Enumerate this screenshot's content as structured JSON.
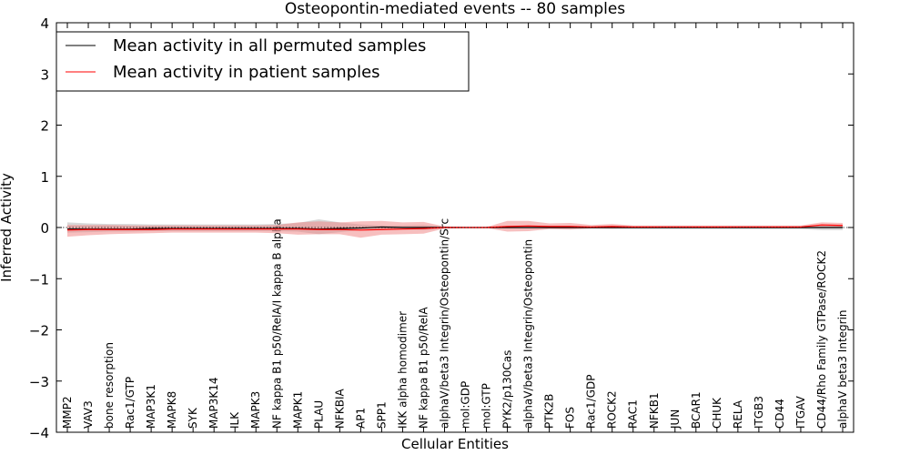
{
  "chart_data": {
    "type": "line",
    "title": "Osteopontin-mediated events -- 80 samples",
    "xlabel": "Cellular Entities",
    "ylabel": "Inferred Activity",
    "ylim": [
      -4,
      4
    ],
    "yticks": [
      4,
      3,
      2,
      1,
      0,
      -1,
      -2,
      -3,
      -4
    ],
    "ytick_labels": [
      "4",
      "3",
      "2",
      "1",
      "0",
      "−1",
      "−2",
      "−3",
      "−4"
    ],
    "legend_position": "top-left",
    "categories": [
      "MMP2",
      "VAV3",
      "bone resorption",
      "Rac1/GTP",
      "MAP3K1",
      "MAPK8",
      "SYK",
      "MAP3K14",
      "ILK",
      "MAPK3",
      "NF kappa B1 p50/RelA/I kappa B alpha",
      "MAPK1",
      "PLAU",
      "NFKBIA",
      "AP1",
      "SPP1",
      "IKK alpha homodimer",
      "NF kappa B1 p50/RelA",
      "alphaV/beta3 Integrin/Osteopontin/Src",
      "mol:GDP",
      "mol:GTP",
      "PYK2/p130Cas",
      "alphaV/beta3 Integrin/Osteopontin",
      "PTK2B",
      "FOS",
      "Rac1/GDP",
      "ROCK2",
      "RAC1",
      "NFKB1",
      "JUN",
      "BCAR1",
      "CHUK",
      "RELA",
      "ITGB3",
      "CD44",
      "ITGAV",
      "CD44/Rho Family GTPase/ROCK2",
      "alphaV beta3 Integrin"
    ],
    "series": [
      {
        "name": "Mean activity in all permuted samples",
        "color": "#000000",
        "band_color": "#b0b0b0",
        "values": [
          -0.03,
          -0.03,
          -0.03,
          -0.03,
          -0.02,
          -0.02,
          -0.02,
          -0.02,
          -0.02,
          -0.02,
          -0.02,
          -0.02,
          -0.03,
          -0.02,
          -0.01,
          0.01,
          0.0,
          0.0,
          0.0,
          0.0,
          0.0,
          0.0,
          0.0,
          0.0,
          0.0,
          0.0,
          0.0,
          0.0,
          0.0,
          0.0,
          0.0,
          0.0,
          0.0,
          0.0,
          0.0,
          0.0,
          0.0,
          0.0
        ],
        "lower": [
          -0.1,
          -0.09,
          -0.08,
          -0.08,
          -0.07,
          -0.07,
          -0.07,
          -0.07,
          -0.07,
          -0.07,
          -0.07,
          -0.08,
          -0.13,
          -0.09,
          -0.05,
          -0.04,
          -0.04,
          -0.05,
          -0.02,
          -0.01,
          -0.01,
          -0.02,
          -0.02,
          -0.02,
          -0.02,
          -0.02,
          -0.03,
          -0.03,
          -0.03,
          -0.03,
          -0.03,
          -0.03,
          -0.03,
          -0.03,
          -0.03,
          -0.03,
          -0.05,
          -0.05
        ],
        "upper": [
          0.1,
          0.08,
          0.07,
          0.07,
          0.06,
          0.06,
          0.06,
          0.06,
          0.06,
          0.06,
          0.07,
          0.09,
          0.16,
          0.1,
          0.06,
          0.04,
          0.04,
          0.05,
          0.02,
          0.01,
          0.01,
          0.02,
          0.02,
          0.02,
          0.02,
          0.02,
          0.03,
          0.03,
          0.03,
          0.03,
          0.03,
          0.03,
          0.03,
          0.03,
          0.03,
          0.03,
          0.05,
          0.05
        ]
      },
      {
        "name": "Mean activity in patient samples",
        "color": "#ff0000",
        "band_color": "#f08080",
        "values": [
          -0.05,
          -0.04,
          -0.04,
          -0.04,
          -0.04,
          -0.03,
          -0.03,
          -0.03,
          -0.03,
          -0.03,
          -0.03,
          -0.03,
          -0.04,
          -0.04,
          -0.05,
          -0.04,
          -0.03,
          -0.02,
          0.0,
          0.0,
          0.0,
          0.02,
          0.03,
          0.02,
          0.02,
          0.01,
          0.02,
          0.01,
          0.01,
          0.01,
          0.01,
          0.01,
          0.01,
          0.01,
          0.01,
          0.01,
          0.05,
          0.04
        ],
        "lower": [
          -0.18,
          -0.15,
          -0.13,
          -0.12,
          -0.11,
          -0.1,
          -0.1,
          -0.1,
          -0.1,
          -0.1,
          -0.11,
          -0.14,
          -0.13,
          -0.13,
          -0.2,
          -0.14,
          -0.13,
          -0.12,
          -0.02,
          -0.01,
          -0.01,
          -0.08,
          -0.07,
          -0.03,
          -0.04,
          -0.02,
          -0.02,
          -0.01,
          -0.01,
          -0.01,
          -0.01,
          -0.01,
          -0.01,
          -0.01,
          -0.01,
          -0.01,
          0.0,
          0.0
        ],
        "upper": [
          0.05,
          0.05,
          0.05,
          0.04,
          0.04,
          0.04,
          0.04,
          0.04,
          0.04,
          0.04,
          0.05,
          0.1,
          0.12,
          0.1,
          0.12,
          0.13,
          0.1,
          0.11,
          0.02,
          0.01,
          0.01,
          0.13,
          0.13,
          0.08,
          0.09,
          0.05,
          0.07,
          0.04,
          0.04,
          0.04,
          0.04,
          0.04,
          0.04,
          0.04,
          0.04,
          0.04,
          0.1,
          0.09
        ]
      }
    ]
  }
}
